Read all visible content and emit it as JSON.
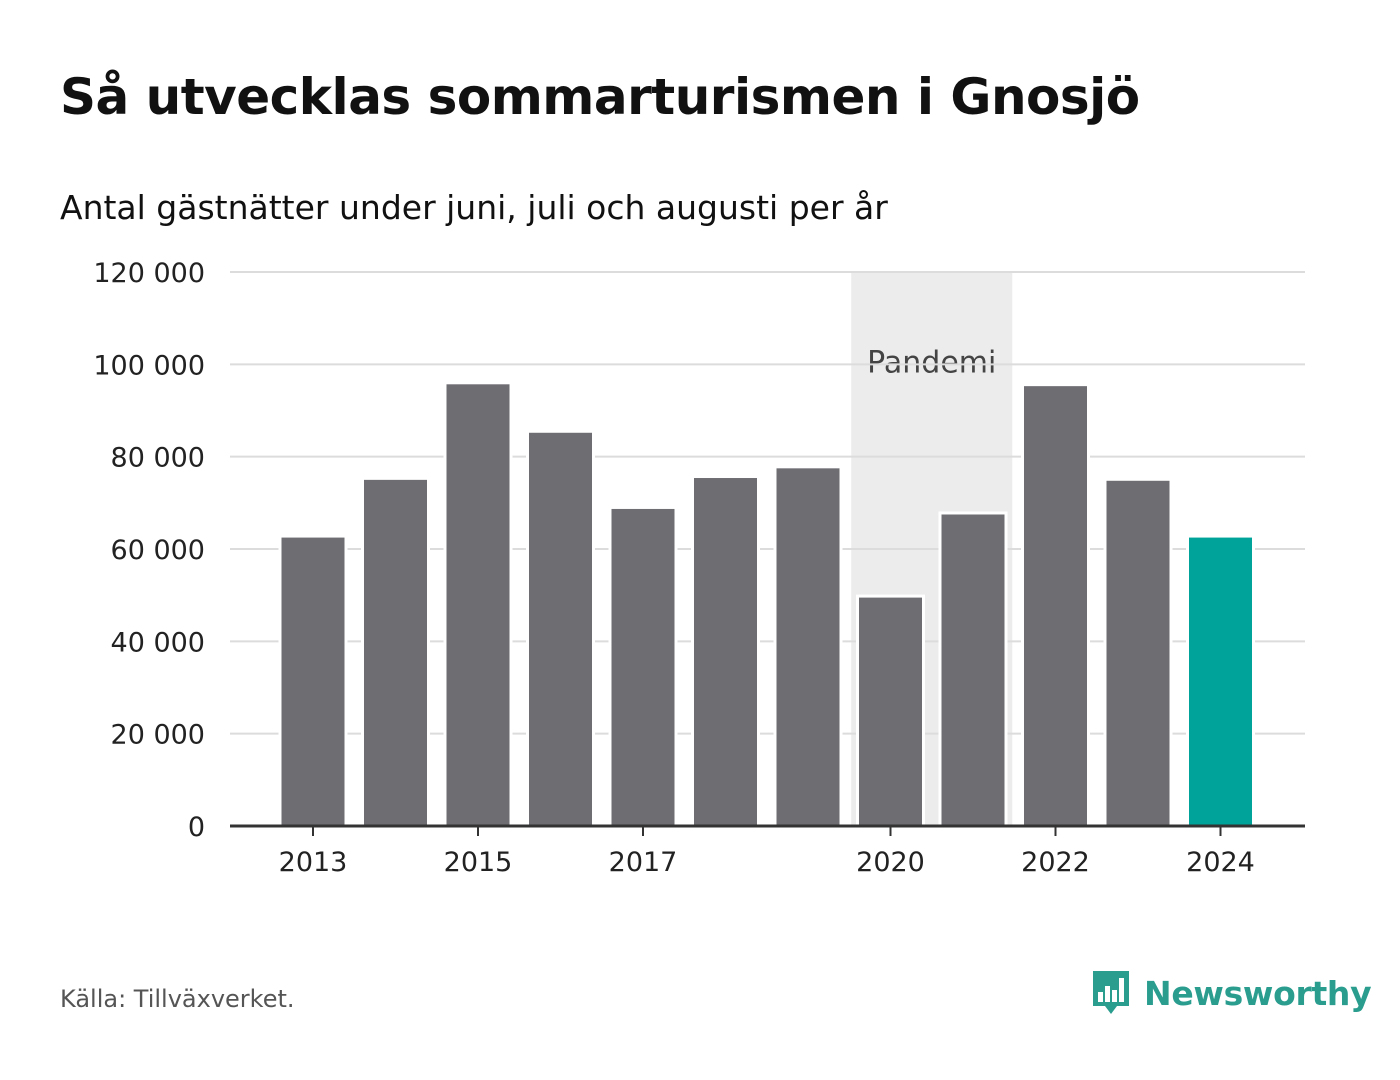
{
  "chart_data": {
    "type": "bar",
    "title": "Så utvecklas sommarturismen i Gnosjö",
    "subtitle": "Antal gästnätter under juni, juli och augusti per år",
    "categories": [
      "2013",
      "2014",
      "2015",
      "2016",
      "2017",
      "2018",
      "2019",
      "2020",
      "2021",
      "2022",
      "2023",
      "2024"
    ],
    "values": [
      62800,
      75300,
      96000,
      85500,
      69000,
      75700,
      77800,
      49800,
      67800,
      95600,
      75100,
      62800
    ],
    "x_tick_labels": [
      "2013",
      "2015",
      "2017",
      "2020",
      "2022",
      "2024"
    ],
    "y_ticks": [
      0,
      20000,
      40000,
      60000,
      80000,
      100000,
      120000
    ],
    "y_tick_labels": [
      "0",
      "20 000",
      "40 000",
      "60 000",
      "80 000",
      "100 000",
      "120 000"
    ],
    "ylim": [
      0,
      120000
    ],
    "grid": true,
    "highlight_category": "2024",
    "colors": {
      "bar": "#6e6d72",
      "highlight": "#00a399",
      "grid": "#dcdcdc",
      "axis": "#333333",
      "band": "#ececec"
    },
    "annotation": {
      "label": "Pandemi",
      "from": "2020",
      "to": "2021"
    }
  },
  "footer": {
    "source": "Källa: Tillväxverket."
  },
  "brand": {
    "name": "Newsworthy",
    "icon": "bar-chart-bubble-icon",
    "color": "#2a9d8f"
  }
}
